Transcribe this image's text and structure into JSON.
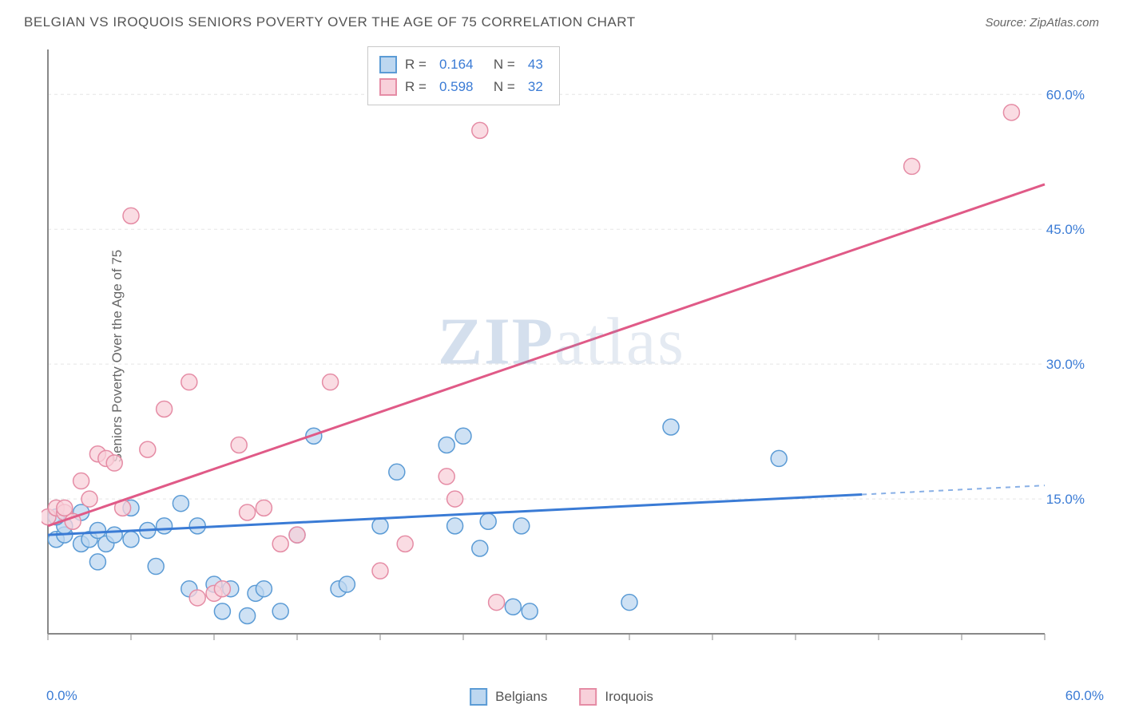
{
  "header": {
    "title": "BELGIAN VS IROQUOIS SENIORS POVERTY OVER THE AGE OF 75 CORRELATION CHART",
    "source": "Source: ZipAtlas.com"
  },
  "chart": {
    "type": "scatter",
    "ylabel": "Seniors Poverty Over the Age of 75",
    "xlim": [
      0,
      60
    ],
    "ylim": [
      0,
      65
    ],
    "xtick_labels": [
      "0.0%",
      "60.0%"
    ],
    "ytick_labels": [
      "15.0%",
      "30.0%",
      "45.0%",
      "60.0%"
    ],
    "ytick_values": [
      15,
      30,
      45,
      60
    ],
    "xtick_minor_step": 5,
    "grid_color": "#e5e5e5",
    "axis_color": "#888888",
    "background_color": "#ffffff",
    "watermark": "ZIPatlas",
    "series": [
      {
        "name": "Belgians",
        "marker_fill": "#bdd7f0",
        "marker_stroke": "#5b9bd5",
        "line_color": "#3a7bd5",
        "line_dash_extend": true,
        "r_value": "0.164",
        "n_value": "43",
        "marker_radius": 10,
        "trend": {
          "x1": 0,
          "y1": 11,
          "x2": 60,
          "y2": 16.5,
          "solid_until_x": 49
        },
        "points": [
          [
            0.5,
            10.5
          ],
          [
            1,
            11
          ],
          [
            1,
            12
          ],
          [
            2,
            10
          ],
          [
            2.5,
            10.5
          ],
          [
            3,
            11.5
          ],
          [
            3.5,
            10
          ],
          [
            4,
            11
          ],
          [
            5,
            10.5
          ],
          [
            5,
            14
          ],
          [
            6,
            11.5
          ],
          [
            6.5,
            7.5
          ],
          [
            7,
            12
          ],
          [
            8,
            14.5
          ],
          [
            9,
            12
          ],
          [
            10,
            5.5
          ],
          [
            10.5,
            2.5
          ],
          [
            11,
            5
          ],
          [
            12,
            2
          ],
          [
            12.5,
            4.5
          ],
          [
            13,
            5
          ],
          [
            14,
            2.5
          ],
          [
            15,
            11
          ],
          [
            16,
            22
          ],
          [
            17.5,
            5
          ],
          [
            18,
            5.5
          ],
          [
            20,
            12
          ],
          [
            21,
            18
          ],
          [
            24,
            21
          ],
          [
            24.5,
            12
          ],
          [
            25,
            22
          ],
          [
            26,
            9.5
          ],
          [
            26.5,
            12.5
          ],
          [
            28,
            3
          ],
          [
            28.5,
            12
          ],
          [
            29,
            2.5
          ],
          [
            35,
            3.5
          ],
          [
            37.5,
            23
          ],
          [
            44,
            19.5
          ],
          [
            0.5,
            13
          ],
          [
            2,
            13.5
          ],
          [
            3,
            8
          ],
          [
            8.5,
            5
          ]
        ]
      },
      {
        "name": "Iroquois",
        "marker_fill": "#f8d0da",
        "marker_stroke": "#e58ca5",
        "line_color": "#e05a87",
        "line_dash_extend": false,
        "r_value": "0.598",
        "n_value": "32",
        "marker_radius": 10,
        "trend": {
          "x1": 0,
          "y1": 12,
          "x2": 60,
          "y2": 50,
          "solid_until_x": 60
        },
        "points": [
          [
            0,
            13
          ],
          [
            0.5,
            14
          ],
          [
            1,
            13.5
          ],
          [
            1.5,
            12.5
          ],
          [
            1,
            14
          ],
          [
            2,
            17
          ],
          [
            2.5,
            15
          ],
          [
            3,
            20
          ],
          [
            3.5,
            19.5
          ],
          [
            4,
            19
          ],
          [
            4.5,
            14
          ],
          [
            5,
            46.5
          ],
          [
            6,
            20.5
          ],
          [
            7,
            25
          ],
          [
            8.5,
            28
          ],
          [
            9,
            4
          ],
          [
            10,
            4.5
          ],
          [
            10.5,
            5
          ],
          [
            11.5,
            21
          ],
          [
            12,
            13.5
          ],
          [
            13,
            14
          ],
          [
            14,
            10
          ],
          [
            15,
            11
          ],
          [
            17,
            28
          ],
          [
            20,
            7
          ],
          [
            21.5,
            10
          ],
          [
            24,
            17.5
          ],
          [
            24.5,
            15
          ],
          [
            26,
            56
          ],
          [
            27,
            3.5
          ],
          [
            52,
            52
          ],
          [
            58,
            58
          ]
        ]
      }
    ]
  },
  "legend": {
    "items": [
      {
        "label": "Belgians",
        "fill": "#bdd7f0",
        "stroke": "#5b9bd5"
      },
      {
        "label": "Iroquois",
        "fill": "#f8d0da",
        "stroke": "#e58ca5"
      }
    ]
  }
}
